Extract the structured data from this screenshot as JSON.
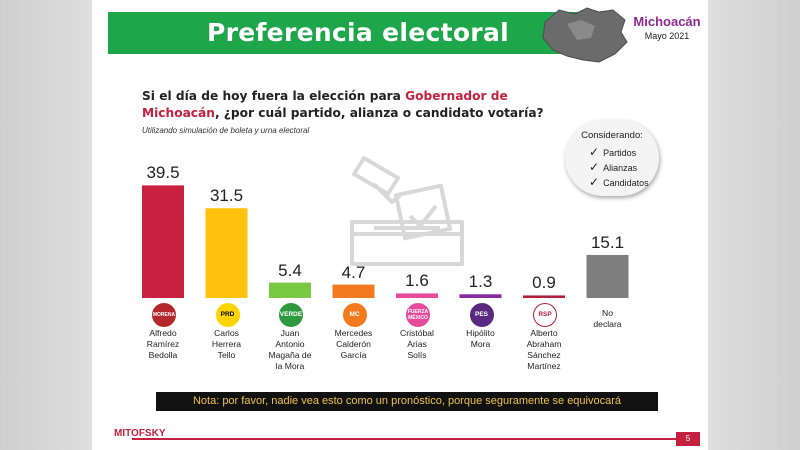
{
  "header": {
    "title": "Preferencia electoral",
    "region": "Michoacán",
    "date": "Mayo 2021"
  },
  "question": {
    "part1": "Si el día de hoy fuera la elección para ",
    "highlight": "Gobernador de Michoacán",
    "part2": ", ¿por cuál partido, alianza o candidato votaría?",
    "method": "Utilizando simulación de boleta y urna electoral"
  },
  "considering": {
    "title": "Considerando:",
    "items": [
      "Partidos",
      "Alianzas",
      "Candidatos"
    ]
  },
  "chart_data": {
    "type": "bar",
    "categories": [
      "Alfredo Ramírez Bedolla",
      "Carlos Herrera Tello",
      "Juan Antonio Magaña de la Mora",
      "Mercedes Calderón García",
      "Cristóbal Arias Solís",
      "Hipólito Mora",
      "Alberto Abraham Sánchez Martínez",
      "No declara"
    ],
    "values": [
      39.5,
      31.5,
      5.4,
      4.7,
      1.6,
      1.3,
      0.9,
      15.1
    ],
    "labels": [
      "39.5",
      "31.5",
      "5.4",
      "4.7",
      "1.6",
      "1.3",
      "0.9",
      "15.1"
    ],
    "colors": [
      "#c8203e",
      "#ffc20e",
      "#7ac943",
      "#f47a20",
      "#e84a9c",
      "#8a2aa0",
      "#b0203a",
      "#7f7f7f"
    ],
    "candidate_lines": [
      [
        "Alfredo",
        "Ramírez",
        "Bedolla"
      ],
      [
        "Carlos",
        "Herrera",
        "Tello"
      ],
      [
        "Juan",
        "Antonio",
        "Magaña de",
        "la Mora"
      ],
      [
        "Mercedes",
        "Calderón",
        "García"
      ],
      [
        "Cristóbal",
        "Arias",
        "Solís"
      ],
      [
        "Hipólito",
        "Mora"
      ],
      [
        "Alberto",
        "Abraham",
        "Sánchez",
        "Martínez"
      ],
      [
        "No",
        "declara"
      ]
    ],
    "party_logos": [
      {
        "text": "MORENA",
        "color": "#b5272d",
        "text_color": "#ffffff"
      },
      {
        "text": "PRD",
        "color": "#ffd400",
        "text_color": "#000000"
      },
      {
        "text": "VERDE",
        "color": "#2e9a3e",
        "text_color": "#ffffff"
      },
      {
        "text": "MC",
        "color": "#f47a20",
        "text_color": "#ffffff"
      },
      {
        "text": "FUERZA MÉXICO",
        "color": "#e84a9c",
        "text_color": "#ffffff"
      },
      {
        "text": "PES",
        "color": "#5a2a82",
        "text_color": "#ffffff"
      },
      {
        "text": "RSP",
        "color": "#ffffff",
        "text_color": "#b0203a"
      },
      {
        "text": "",
        "color": "",
        "text_color": ""
      }
    ],
    "ylim": [
      0,
      45
    ],
    "grid": false,
    "legend": "none"
  },
  "note": "Nota: por favor, nadie vea esto como un pronóstico, porque seguramente se equivocará",
  "footer": {
    "brand": "MITOFSKY",
    "page": "5"
  }
}
